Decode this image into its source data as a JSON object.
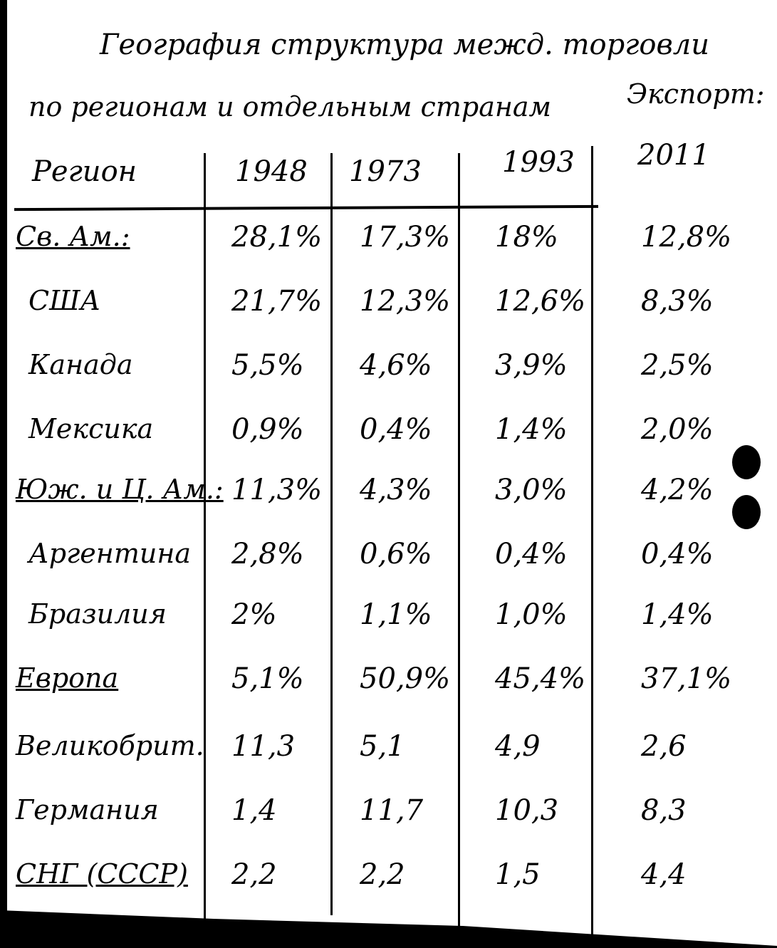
{
  "document": {
    "title": "География структура межд. торговли",
    "subtitle": "по регионам и отдельным странам",
    "note": "Экспорт:",
    "table": {
      "headers": [
        "Регион",
        "1948",
        "1973",
        "1993",
        "2011"
      ],
      "rows": [
        {
          "region": "Св. Ам.:",
          "underlined": true,
          "values": [
            "28,1%",
            "17,3%",
            "18%",
            "12,8%"
          ]
        },
        {
          "region": "США",
          "underlined": false,
          "values": [
            "21,7%",
            "12,3%",
            "12,6%",
            "8,3%"
          ]
        },
        {
          "region": "Канада",
          "underlined": false,
          "values": [
            "5,5%",
            "4,6%",
            "3,9%",
            "2,5%"
          ]
        },
        {
          "region": "Мексика",
          "underlined": false,
          "values": [
            "0,9%",
            "0,4%",
            "1,4%",
            "2,0%"
          ]
        },
        {
          "region": "Юж. и Ц. Ам.:",
          "underlined": true,
          "values": [
            "11,3%",
            "4,3%",
            "3,0%",
            "4,2%"
          ]
        },
        {
          "region": "Аргентина",
          "underlined": false,
          "values": [
            "2,8%",
            "0,6%",
            "0,4%",
            "0,4%"
          ]
        },
        {
          "region": "Бразилия",
          "underlined": false,
          "values": [
            "2%",
            "1,1%",
            "1,0%",
            "1,4%"
          ]
        },
        {
          "region": "Европа",
          "underlined": true,
          "values": [
            "5,1%",
            "50,9%",
            "45,4%",
            "37,1%"
          ]
        },
        {
          "region": "Великобрит.",
          "underlined": false,
          "values": [
            "11,3",
            "5,1",
            "4,9",
            "2,6"
          ]
        },
        {
          "region": "Германия",
          "underlined": false,
          "values": [
            "1,4",
            "11,7",
            "10,3",
            "8,3"
          ]
        },
        {
          "region": "СНГ (СССР)",
          "underlined": true,
          "values": [
            "2,2",
            "2,2",
            "1,5",
            "4,4"
          ]
        }
      ]
    }
  }
}
